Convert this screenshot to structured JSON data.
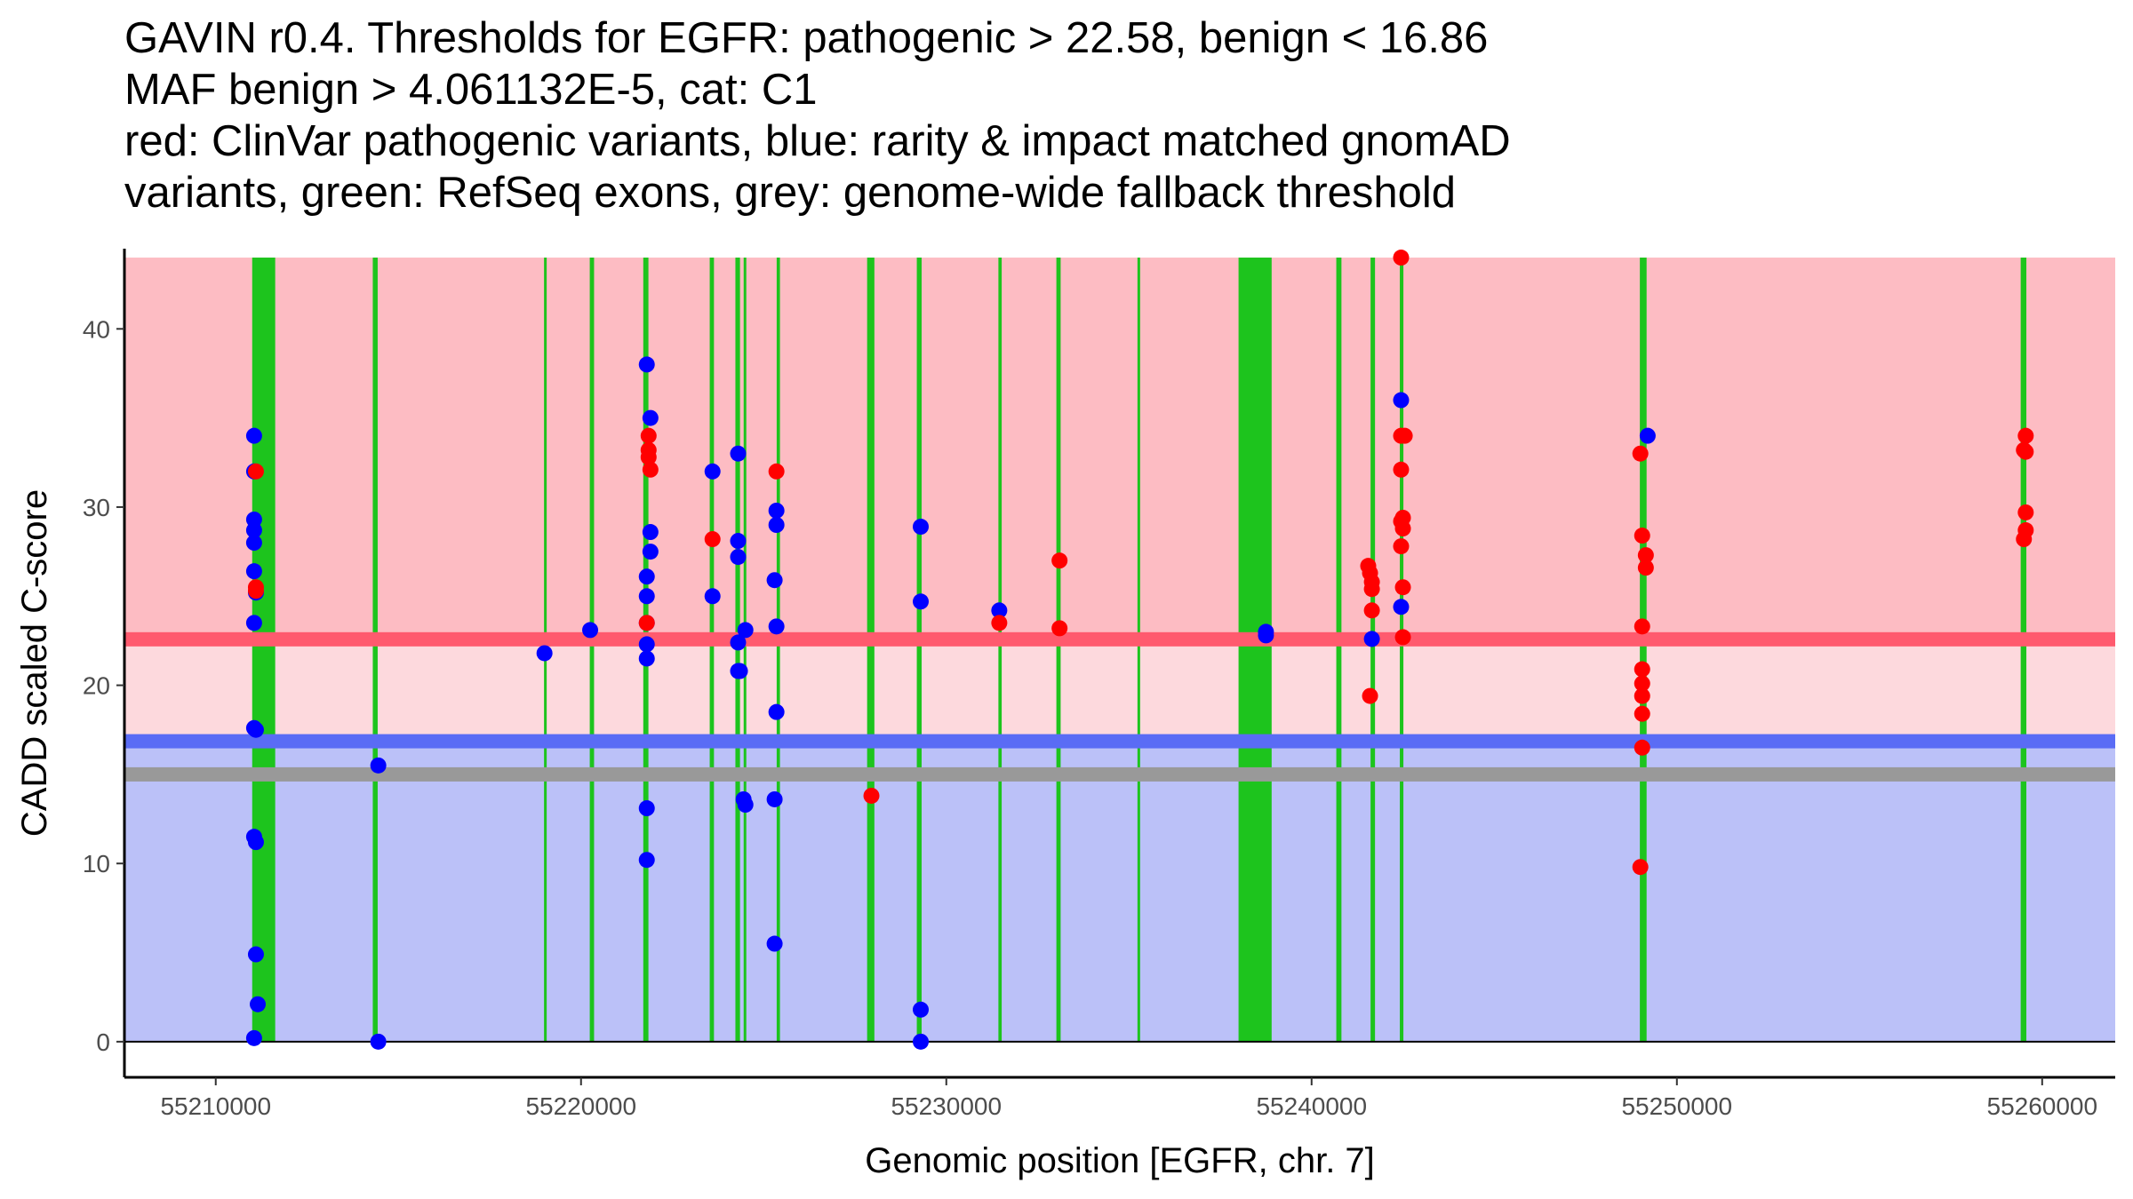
{
  "chart_data": {
    "type": "scatter",
    "title_lines": [
      "GAVIN r0.4. Thresholds for EGFR: pathogenic > 22.58, benign < 16.86",
      "MAF benign > 4.061132E-5, cat: C1",
      "red: ClinVar pathogenic variants, blue: rarity & impact matched gnomAD",
      "variants, green: RefSeq exons, grey: genome-wide fallback threshold"
    ],
    "xlabel": "Genomic position [EGFR, chr. 7]",
    "ylabel": "CADD scaled C-score",
    "xlim": [
      55207500,
      55262000
    ],
    "ylim": [
      -2,
      44.5
    ],
    "x_ticks": [
      55210000,
      55220000,
      55230000,
      55240000,
      55250000,
      55260000
    ],
    "x_tick_labels": [
      "55210000",
      "55220000",
      "55230000",
      "55240000",
      "55250000",
      "55260000"
    ],
    "y_ticks": [
      0,
      10,
      20,
      30,
      40
    ],
    "y_tick_labels": [
      "0",
      "10",
      "20",
      "30",
      "40"
    ],
    "colors": {
      "pathogenic_region": "#fdbcc3",
      "mid_region": "#fdd9dd",
      "benign_region": "#bbc1f8",
      "pathogenic_line": "#ff5a6e",
      "benign_line": "#5a6cf5",
      "fallback_line": "#999999",
      "exon": "#1dc41d",
      "clinvar": "#ff0000",
      "gnomad": "#0000ff"
    },
    "regions": {
      "x_start": 55207500,
      "x_end": 55262000,
      "pathogenic_top": 44,
      "pathogenic_threshold": 22.58,
      "benign_threshold": 16.86,
      "fallback_threshold": 15,
      "benign_bottom": 0
    },
    "exons": [
      {
        "start": 55210998,
        "end": 55211628
      },
      {
        "start": 55214299,
        "end": 55214433
      },
      {
        "start": 55218987,
        "end": 55219055
      },
      {
        "start": 55220239,
        "end": 55220357
      },
      {
        "start": 55221704,
        "end": 55221845
      },
      {
        "start": 55223523,
        "end": 55223639
      },
      {
        "start": 55224226,
        "end": 55224352
      },
      {
        "start": 55224452,
        "end": 55224525
      },
      {
        "start": 55225356,
        "end": 55225446
      },
      {
        "start": 55227832,
        "end": 55228031
      },
      {
        "start": 55229192,
        "end": 55229324
      },
      {
        "start": 55231426,
        "end": 55231516
      },
      {
        "start": 55233013,
        "end": 55233130
      },
      {
        "start": 55235233,
        "end": 55235277
      },
      {
        "start": 55238000,
        "end": 55238906
      },
      {
        "start": 55240676,
        "end": 55240817
      },
      {
        "start": 55241614,
        "end": 55241736
      },
      {
        "start": 55242415,
        "end": 55242513
      },
      {
        "start": 55248986,
        "end": 55249171
      },
      {
        "start": 55259412,
        "end": 55259567
      }
    ],
    "series": [
      {
        "name": "gnomAD (blue)",
        "points": [
          [
            55211050,
            34
          ],
          [
            55211050,
            32
          ],
          [
            55211050,
            29.3
          ],
          [
            55211050,
            28.7
          ],
          [
            55211050,
            28
          ],
          [
            55211050,
            26.4
          ],
          [
            55211100,
            25.2
          ],
          [
            55211050,
            23.5
          ],
          [
            55211050,
            17.6
          ],
          [
            55211100,
            17.5
          ],
          [
            55211050,
            11.5
          ],
          [
            55211100,
            11.2
          ],
          [
            55211100,
            4.9
          ],
          [
            55211150,
            2.1
          ],
          [
            55211050,
            0.2
          ],
          [
            55214450,
            15.5
          ],
          [
            55214450,
            0
          ],
          [
            55219000,
            21.8
          ],
          [
            55220250,
            23.1
          ],
          [
            55221800,
            38
          ],
          [
            55221900,
            35
          ],
          [
            55221900,
            28.6
          ],
          [
            55221900,
            27.5
          ],
          [
            55221800,
            26.1
          ],
          [
            55221800,
            25
          ],
          [
            55221800,
            23.5
          ],
          [
            55221800,
            22.3
          ],
          [
            55221800,
            21.5
          ],
          [
            55221800,
            13.1
          ],
          [
            55221800,
            10.2
          ],
          [
            55223600,
            32
          ],
          [
            55223600,
            25
          ],
          [
            55224300,
            33
          ],
          [
            55224300,
            28.1
          ],
          [
            55224300,
            27.2
          ],
          [
            55224300,
            22.4
          ],
          [
            55224300,
            20.8
          ],
          [
            55224350,
            20.8
          ],
          [
            55224500,
            23.1
          ],
          [
            55224450,
            13.6
          ],
          [
            55224500,
            13.3
          ],
          [
            55225350,
            29.8
          ],
          [
            55225350,
            29
          ],
          [
            55225300,
            25.9
          ],
          [
            55225350,
            23.3
          ],
          [
            55225350,
            18.5
          ],
          [
            55225300,
            13.6
          ],
          [
            55225300,
            5.5
          ],
          [
            55229300,
            28.9
          ],
          [
            55229300,
            24.7
          ],
          [
            55229300,
            1.8
          ],
          [
            55229300,
            0
          ],
          [
            55231450,
            24.2
          ],
          [
            55238750,
            23
          ],
          [
            55238750,
            22.8
          ],
          [
            55241650,
            22.6
          ],
          [
            55242450,
            36
          ],
          [
            55242450,
            24.4
          ],
          [
            55249200,
            34
          ]
        ]
      },
      {
        "name": "ClinVar (red)",
        "points": [
          [
            55211100,
            32
          ],
          [
            55211100,
            25.5
          ],
          [
            55211100,
            25.3
          ],
          [
            55221850,
            34
          ],
          [
            55221850,
            33.2
          ],
          [
            55221850,
            32.8
          ],
          [
            55221900,
            32.1
          ],
          [
            55221800,
            23.5
          ],
          [
            55223600,
            28.2
          ],
          [
            55225350,
            32
          ],
          [
            55227950,
            13.8
          ],
          [
            55231450,
            23.5
          ],
          [
            55233100,
            27
          ],
          [
            55233100,
            23.2
          ],
          [
            55241550,
            26.7
          ],
          [
            55241600,
            26.3
          ],
          [
            55241650,
            25.8
          ],
          [
            55241650,
            25.4
          ],
          [
            55241650,
            24.2
          ],
          [
            55241600,
            19.4
          ],
          [
            55242450,
            44
          ],
          [
            55242450,
            34
          ],
          [
            55242550,
            34
          ],
          [
            55242450,
            32.1
          ],
          [
            55242500,
            29.4
          ],
          [
            55242450,
            29.2
          ],
          [
            55242500,
            28.8
          ],
          [
            55242450,
            27.8
          ],
          [
            55242500,
            25.5
          ],
          [
            55242500,
            22.7
          ],
          [
            55249000,
            33
          ],
          [
            55249050,
            28.4
          ],
          [
            55249150,
            27.3
          ],
          [
            55249150,
            26.6
          ],
          [
            55249050,
            23.3
          ],
          [
            55249050,
            20.9
          ],
          [
            55249050,
            20.1
          ],
          [
            55249050,
            19.4
          ],
          [
            55249050,
            18.4
          ],
          [
            55249050,
            16.5
          ],
          [
            55249000,
            9.8
          ],
          [
            55259550,
            34
          ],
          [
            55259500,
            33.2
          ],
          [
            55259550,
            33.1
          ],
          [
            55259550,
            29.7
          ],
          [
            55259550,
            28.7
          ],
          [
            55259500,
            28.2
          ]
        ]
      }
    ]
  }
}
